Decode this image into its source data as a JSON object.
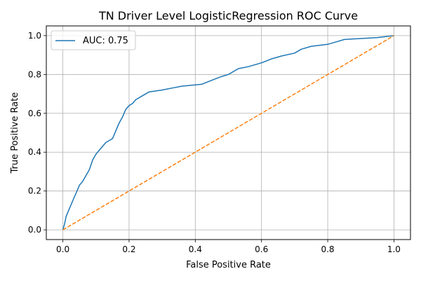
{
  "chart_data": {
    "type": "line",
    "title": "TN Driver Level LogisticRegression ROC Curve",
    "xlabel": "False Positive Rate",
    "ylabel": "True Positive Rate",
    "xlim": [
      -0.05,
      1.05
    ],
    "ylim": [
      -0.05,
      1.05
    ],
    "xticks": [
      0.0,
      0.2,
      0.4,
      0.6,
      0.8,
      1.0
    ],
    "yticks": [
      0.0,
      0.2,
      0.4,
      0.6,
      0.8,
      1.0
    ],
    "tick_labels_x": [
      "0.0",
      "0.2",
      "0.4",
      "0.6",
      "0.8",
      "1.0"
    ],
    "tick_labels_y": [
      "0.0",
      "0.2",
      "0.4",
      "0.6",
      "0.8",
      "1.0"
    ],
    "grid": true,
    "legend_position": "upper-left",
    "series": [
      {
        "name": "AUC: 0.75",
        "color": "#1f77b4",
        "style": "solid",
        "x": [
          0.0,
          0.005,
          0.01,
          0.02,
          0.03,
          0.04,
          0.05,
          0.06,
          0.07,
          0.08,
          0.09,
          0.1,
          0.11,
          0.12,
          0.13,
          0.14,
          0.15,
          0.16,
          0.17,
          0.18,
          0.19,
          0.2,
          0.21,
          0.22,
          0.24,
          0.26,
          0.28,
          0.3,
          0.33,
          0.36,
          0.39,
          0.42,
          0.45,
          0.48,
          0.5,
          0.53,
          0.56,
          0.6,
          0.63,
          0.66,
          0.7,
          0.72,
          0.75,
          0.8,
          0.83,
          0.85,
          0.9,
          0.95,
          1.0
        ],
        "y": [
          0.0,
          0.03,
          0.07,
          0.11,
          0.15,
          0.19,
          0.23,
          0.25,
          0.28,
          0.31,
          0.36,
          0.39,
          0.41,
          0.43,
          0.45,
          0.46,
          0.47,
          0.51,
          0.55,
          0.58,
          0.62,
          0.64,
          0.65,
          0.67,
          0.69,
          0.71,
          0.715,
          0.72,
          0.73,
          0.74,
          0.745,
          0.75,
          0.77,
          0.79,
          0.8,
          0.83,
          0.84,
          0.86,
          0.88,
          0.895,
          0.91,
          0.93,
          0.945,
          0.955,
          0.97,
          0.98,
          0.985,
          0.99,
          1.0
        ]
      },
      {
        "name": "",
        "color": "#ff7f0e",
        "style": "dashed",
        "x": [
          0.0,
          1.0
        ],
        "y": [
          0.0,
          1.0
        ]
      }
    ]
  }
}
